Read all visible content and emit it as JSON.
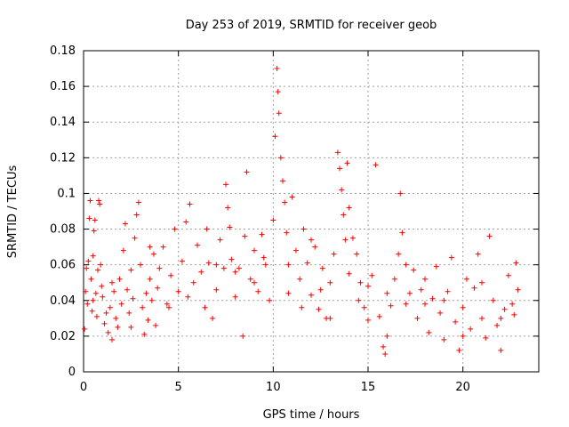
{
  "chart_data": {
    "type": "scatter",
    "title": "Day 253 of 2019, SRMTID for receiver geob",
    "xlabel": "GPS time / hours",
    "ylabel": "SRMTID / TECUs",
    "xlim": [
      0,
      24
    ],
    "ylim": [
      0,
      0.18
    ],
    "xticks": [
      "0",
      "5",
      "10",
      "15",
      "20"
    ],
    "yticks": [
      "0",
      "0.02",
      "0.04",
      "0.06",
      "0.08",
      "0.1",
      "0.12",
      "0.14",
      "0.16",
      "0.18"
    ],
    "grid": true,
    "marker": "+",
    "color": "#ff0000",
    "series": [
      {
        "name": "SRMTID",
        "points": [
          [
            0.05,
            0.024
          ],
          [
            0.1,
            0.045
          ],
          [
            0.15,
            0.058
          ],
          [
            0.2,
            0.038
          ],
          [
            0.25,
            0.062
          ],
          [
            0.3,
            0.086
          ],
          [
            0.35,
            0.096
          ],
          [
            0.4,
            0.052
          ],
          [
            0.45,
            0.034
          ],
          [
            0.5,
            0.065
          ],
          [
            0.55,
            0.079
          ],
          [
            0.6,
            0.085
          ],
          [
            0.65,
            0.044
          ],
          [
            0.7,
            0.031
          ],
          [
            0.75,
            0.057
          ],
          [
            0.8,
            0.096
          ],
          [
            0.85,
            0.094
          ],
          [
            0.9,
            0.06
          ],
          [
            0.95,
            0.048
          ],
          [
            1.0,
            0.042
          ],
          [
            1.1,
            0.027
          ],
          [
            1.2,
            0.033
          ],
          [
            1.3,
            0.022
          ],
          [
            1.4,
            0.036
          ],
          [
            1.5,
            0.018
          ],
          [
            1.6,
            0.045
          ],
          [
            1.7,
            0.03
          ],
          [
            1.8,
            0.025
          ],
          [
            1.9,
            0.052
          ],
          [
            2.0,
            0.038
          ],
          [
            2.1,
            0.068
          ],
          [
            2.2,
            0.083
          ],
          [
            2.3,
            0.046
          ],
          [
            2.4,
            0.033
          ],
          [
            2.5,
            0.057
          ],
          [
            2.6,
            0.041
          ],
          [
            2.7,
            0.075
          ],
          [
            2.8,
            0.088
          ],
          [
            2.9,
            0.095
          ],
          [
            3.0,
            0.06
          ],
          [
            3.1,
            0.036
          ],
          [
            3.2,
            0.021
          ],
          [
            3.3,
            0.044
          ],
          [
            3.4,
            0.029
          ],
          [
            3.5,
            0.052
          ],
          [
            3.6,
            0.04
          ],
          [
            3.7,
            0.066
          ],
          [
            3.8,
            0.026
          ],
          [
            3.9,
            0.047
          ],
          [
            4.0,
            0.058
          ],
          [
            4.2,
            0.07
          ],
          [
            4.4,
            0.038
          ],
          [
            4.6,
            0.054
          ],
          [
            4.8,
            0.08
          ],
          [
            5.0,
            0.045
          ],
          [
            5.2,
            0.062
          ],
          [
            5.4,
            0.084
          ],
          [
            5.6,
            0.094
          ],
          [
            5.8,
            0.05
          ],
          [
            6.0,
            0.071
          ],
          [
            6.2,
            0.056
          ],
          [
            6.4,
            0.036
          ],
          [
            6.6,
            0.061
          ],
          [
            6.8,
            0.03
          ],
          [
            7.0,
            0.046
          ],
          [
            7.2,
            0.074
          ],
          [
            7.4,
            0.058
          ],
          [
            7.5,
            0.105
          ],
          [
            7.6,
            0.092
          ],
          [
            7.7,
            0.081
          ],
          [
            7.8,
            0.063
          ],
          [
            8.0,
            0.042
          ],
          [
            8.2,
            0.058
          ],
          [
            8.4,
            0.02
          ],
          [
            8.6,
            0.112
          ],
          [
            8.8,
            0.052
          ],
          [
            9.0,
            0.068
          ],
          [
            9.2,
            0.045
          ],
          [
            9.4,
            0.077
          ],
          [
            9.6,
            0.06
          ],
          [
            9.8,
            0.04
          ],
          [
            10.0,
            0.085
          ],
          [
            10.1,
            0.132
          ],
          [
            10.2,
            0.17
          ],
          [
            10.25,
            0.157
          ],
          [
            10.3,
            0.145
          ],
          [
            10.4,
            0.12
          ],
          [
            10.5,
            0.107
          ],
          [
            10.6,
            0.095
          ],
          [
            10.7,
            0.078
          ],
          [
            10.8,
            0.06
          ],
          [
            11.0,
            0.098
          ],
          [
            11.2,
            0.068
          ],
          [
            11.4,
            0.052
          ],
          [
            11.6,
            0.08
          ],
          [
            11.8,
            0.061
          ],
          [
            12.0,
            0.043
          ],
          [
            12.2,
            0.07
          ],
          [
            12.4,
            0.035
          ],
          [
            12.6,
            0.058
          ],
          [
            12.8,
            0.03
          ],
          [
            13.0,
            0.05
          ],
          [
            13.2,
            0.066
          ],
          [
            13.4,
            0.123
          ],
          [
            13.5,
            0.114
          ],
          [
            13.6,
            0.102
          ],
          [
            13.7,
            0.088
          ],
          [
            13.8,
            0.074
          ],
          [
            13.9,
            0.117
          ],
          [
            14.0,
            0.092
          ],
          [
            14.2,
            0.075
          ],
          [
            14.4,
            0.066
          ],
          [
            14.6,
            0.05
          ],
          [
            14.8,
            0.036
          ],
          [
            15.0,
            0.029
          ],
          [
            15.2,
            0.054
          ],
          [
            15.4,
            0.116
          ],
          [
            15.6,
            0.031
          ],
          [
            15.8,
            0.014
          ],
          [
            15.9,
            0.01
          ],
          [
            16.0,
            0.02
          ],
          [
            16.2,
            0.037
          ],
          [
            16.4,
            0.052
          ],
          [
            16.6,
            0.066
          ],
          [
            16.7,
            0.1
          ],
          [
            16.8,
            0.078
          ],
          [
            17.0,
            0.06
          ],
          [
            17.2,
            0.044
          ],
          [
            17.4,
            0.057
          ],
          [
            17.6,
            0.03
          ],
          [
            17.8,
            0.046
          ],
          [
            18.0,
            0.038
          ],
          [
            18.2,
            0.022
          ],
          [
            18.4,
            0.041
          ],
          [
            18.6,
            0.059
          ],
          [
            18.8,
            0.033
          ],
          [
            19.0,
            0.018
          ],
          [
            19.2,
            0.045
          ],
          [
            19.4,
            0.064
          ],
          [
            19.6,
            0.028
          ],
          [
            19.8,
            0.012
          ],
          [
            20.0,
            0.036
          ],
          [
            20.2,
            0.052
          ],
          [
            20.4,
            0.024
          ],
          [
            20.6,
            0.047
          ],
          [
            20.8,
            0.066
          ],
          [
            21.0,
            0.03
          ],
          [
            21.2,
            0.019
          ],
          [
            21.4,
            0.076
          ],
          [
            21.6,
            0.04
          ],
          [
            21.8,
            0.026
          ],
          [
            22.0,
            0.012
          ],
          [
            22.2,
            0.035
          ],
          [
            22.4,
            0.054
          ],
          [
            22.6,
            0.038
          ],
          [
            22.8,
            0.061
          ],
          [
            22.9,
            0.046
          ],
          [
            0.5,
            0.04
          ],
          [
            1.5,
            0.05
          ],
          [
            2.5,
            0.025
          ],
          [
            3.5,
            0.07
          ],
          [
            4.5,
            0.036
          ],
          [
            5.5,
            0.042
          ],
          [
            6.5,
            0.08
          ],
          [
            7.0,
            0.06
          ],
          [
            8.0,
            0.056
          ],
          [
            8.5,
            0.076
          ],
          [
            9.0,
            0.05
          ],
          [
            9.5,
            0.064
          ],
          [
            10.8,
            0.044
          ],
          [
            11.5,
            0.036
          ],
          [
            12.0,
            0.074
          ],
          [
            12.5,
            0.046
          ],
          [
            13.0,
            0.03
          ],
          [
            14.0,
            0.055
          ],
          [
            14.5,
            0.04
          ],
          [
            15.0,
            0.048
          ],
          [
            16.0,
            0.044
          ],
          [
            17.0,
            0.038
          ],
          [
            18.0,
            0.052
          ],
          [
            19.0,
            0.04
          ],
          [
            20.0,
            0.02
          ],
          [
            21.0,
            0.05
          ],
          [
            22.0,
            0.03
          ],
          [
            22.7,
            0.032
          ]
        ]
      }
    ]
  }
}
